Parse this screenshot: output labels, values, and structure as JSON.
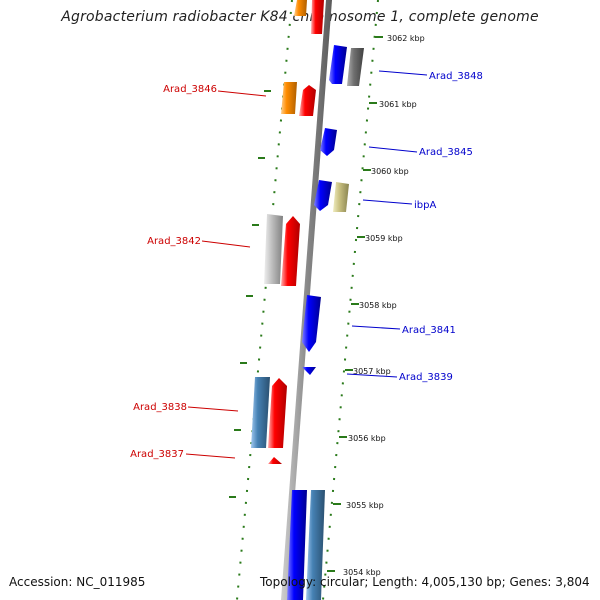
{
  "title": "Agrobacterium radiobacter K84 chromosome 1, complete genome",
  "footer": {
    "accession": "Accession: NC_011985",
    "topology": "Topology: circular; Length: 4,005,130 bp; Genes: 3,804"
  },
  "colors": {
    "backbone": "#888888",
    "tick": "#2a7a1a",
    "left_label": "#cc0000",
    "right_label": "#0000cc",
    "forward_gene": "#ff0000",
    "reverse_gene": "#0000ff",
    "orange_gene": "#ff8c00",
    "grey_gene": "#c0c0c0",
    "steel_gene": "#4682b4",
    "khaki_gene": "#c8c080",
    "dark_grey_gene": "#707070"
  },
  "scale_labels": [
    "3062 kbp",
    "3061 kbp",
    "3060 kbp",
    "3059 kbp",
    "3058 kbp",
    "3057 kbp",
    "3056 kbp",
    "3055 kbp",
    "3054 kbp"
  ],
  "left_gene_labels": [
    "Arad_3846",
    "Arad_3842",
    "Arad_3838",
    "Arad_3837"
  ],
  "right_gene_labels": [
    "Arad_3848",
    "Arad_3845",
    "ibpA",
    "Arad_3841",
    "Arad_3839"
  ]
}
